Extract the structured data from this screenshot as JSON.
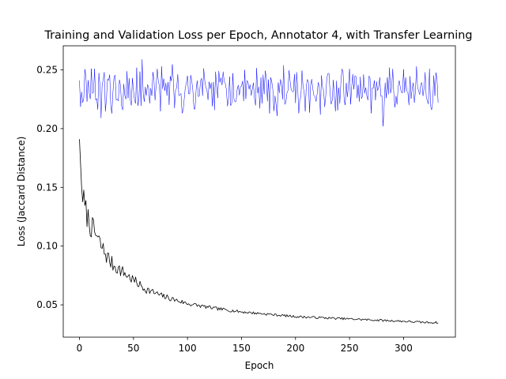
{
  "chart_data": {
    "type": "line",
    "title": "Training and Validation Loss per Epoch, Annotator 4, with Transfer Learning",
    "xlabel": "Epoch",
    "ylabel": "Loss (Jaccard Distance)",
    "xlim": [
      -15.0,
      348.0
    ],
    "ylim": [
      0.0225,
      0.2705
    ],
    "x_ticks": [
      0,
      50,
      100,
      150,
      200,
      250,
      300
    ],
    "y_ticks": [
      0.05,
      0.1,
      0.15,
      0.2,
      0.25
    ],
    "y_tick_labels": [
      "0.05",
      "0.10",
      "0.15",
      "0.20",
      "0.25"
    ],
    "grid": false,
    "series": [
      {
        "color": "#0000ff",
        "x_start": 0,
        "x_end": 332,
        "y_start": 0.241,
        "y_end": 0.222,
        "y_mean": 0.232,
        "y_min": 0.202,
        "y_max": 0.259,
        "sampled_points": [
          [
            0,
            0.241
          ],
          [
            7,
            0.223
          ],
          [
            20,
            0.209
          ],
          [
            28,
            0.246
          ],
          [
            45,
            0.226
          ],
          [
            58,
            0.259
          ],
          [
            76,
            0.253
          ],
          [
            100,
            0.245
          ],
          [
            150,
            0.236
          ],
          [
            189,
            0.254
          ],
          [
            203,
            0.213
          ],
          [
            230,
            0.247
          ],
          [
            270,
            0.213
          ],
          [
            281,
            0.202
          ],
          [
            312,
            0.253
          ],
          [
            324,
            0.251
          ],
          [
            332,
            0.222
          ]
        ]
      },
      {
        "color": "#000000",
        "x_start": 0,
        "x_end": 332,
        "sampled_points": [
          [
            0,
            0.191
          ],
          [
            2,
            0.15
          ],
          [
            5,
            0.132
          ],
          [
            10,
            0.118
          ],
          [
            15,
            0.11
          ],
          [
            20,
            0.1
          ],
          [
            25,
            0.092
          ],
          [
            30,
            0.085
          ],
          [
            40,
            0.078
          ],
          [
            50,
            0.071
          ],
          [
            60,
            0.064
          ],
          [
            75,
            0.058
          ],
          [
            100,
            0.051
          ],
          [
            125,
            0.047
          ],
          [
            150,
            0.044
          ],
          [
            175,
            0.042
          ],
          [
            200,
            0.04
          ],
          [
            225,
            0.039
          ],
          [
            250,
            0.038
          ],
          [
            275,
            0.037
          ],
          [
            300,
            0.036
          ],
          [
            320,
            0.035
          ],
          [
            332,
            0.035
          ]
        ]
      }
    ]
  }
}
